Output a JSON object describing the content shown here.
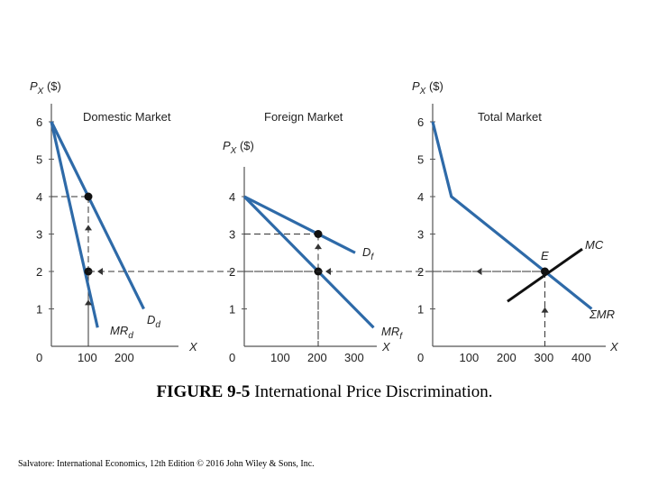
{
  "figure": {
    "caption_number": "FIGURE 9-5",
    "caption_text": "International Price Discrimination.",
    "credit": "Salvatore: International Economics, 12th Edition © 2016 John Wiley & Sons, Inc."
  },
  "chart_data": [
    {
      "type": "line",
      "title": "Domestic Market",
      "ylabel": "P_X ($)",
      "xlabel": "X",
      "ylim": [
        0,
        6
      ],
      "xlim": [
        0,
        250
      ],
      "xticks": [
        0,
        100,
        200
      ],
      "yticks": [
        1,
        2,
        3,
        4,
        5,
        6
      ],
      "series": [
        {
          "name": "D_d",
          "points": [
            [
              0,
              6
            ],
            [
              250,
              1
            ]
          ]
        },
        {
          "name": "MR_d",
          "points": [
            [
              0,
              6
            ],
            [
              125,
              0.5
            ]
          ]
        }
      ],
      "markers": [
        [
          100,
          4
        ],
        [
          100,
          2
        ]
      ]
    },
    {
      "type": "line",
      "title": "Foreign Market",
      "ylabel": "P_X ($)",
      "xlabel": "X",
      "ylim": [
        0,
        5
      ],
      "xlim": [
        0,
        350
      ],
      "xticks": [
        0,
        100,
        200,
        300
      ],
      "yticks": [
        1,
        2,
        3,
        4
      ],
      "series": [
        {
          "name": "D_f",
          "points": [
            [
              0,
              4
            ],
            [
              300,
              2.5
            ]
          ]
        },
        {
          "name": "MR_f",
          "points": [
            [
              0,
              4
            ],
            [
              350,
              0.5
            ]
          ]
        }
      ],
      "markers": [
        [
          200,
          3
        ],
        [
          200,
          2
        ]
      ]
    },
    {
      "type": "line",
      "title": "Total Market",
      "ylabel": "P_X ($)",
      "xlabel": "X",
      "ylim": [
        0,
        6
      ],
      "xlim": [
        0,
        450
      ],
      "xticks": [
        0,
        100,
        200,
        300,
        400
      ],
      "yticks": [
        1,
        2,
        3,
        4,
        5,
        6
      ],
      "series": [
        {
          "name": "ΣMR",
          "points": [
            [
              0,
              6
            ],
            [
              50,
              4
            ],
            [
              425,
              1
            ]
          ]
        },
        {
          "name": "MC",
          "points": [
            [
              200,
              1.2
            ],
            [
              400,
              2.6
            ]
          ]
        }
      ],
      "markers": [
        [
          300,
          2
        ]
      ],
      "annotations": [
        {
          "text": "E",
          "x": 300,
          "y": 2
        }
      ]
    }
  ],
  "panel_labels": {
    "p_text": "P",
    "p_sub": "X",
    "p_unit": " ($)",
    "x_axis": "X",
    "dd": "D",
    "dd_sub": "d",
    "mrd": "MR",
    "mrd_sub": "d",
    "df": "D",
    "df_sub": "f",
    "mrf": "MR",
    "mrf_sub": "f",
    "mc": "MC",
    "smr": "ΣMR",
    "e": "E"
  },
  "colors": {
    "curve": "#2e6aa8",
    "mc": "#111111",
    "axis": "#555555",
    "dash": "#333333"
  }
}
